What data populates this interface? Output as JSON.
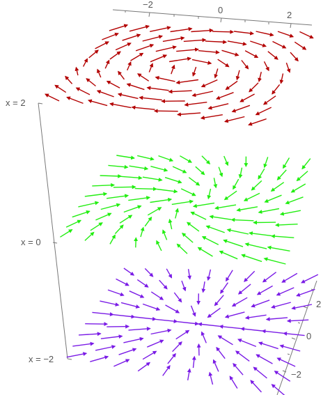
{
  "chart_data": {
    "type": "vector-field-3d",
    "title": "",
    "slices": [
      {
        "label": "x = 2",
        "x": 2,
        "color": "#b30000",
        "pattern": "spiral"
      },
      {
        "label": "x = 0",
        "x": 0,
        "color": "#22ee11",
        "pattern": "sink-spiral"
      },
      {
        "label": "x = −2",
        "x": -2,
        "color": "#7a1be6",
        "pattern": "sink"
      }
    ],
    "top_axis": {
      "ticks": [
        "−2",
        "0",
        "2"
      ],
      "values": [
        -2,
        0,
        2
      ],
      "range": [
        -3,
        3
      ]
    },
    "right_axis": {
      "ticks": [
        "2",
        "0",
        "−2"
      ],
      "values": [
        2,
        0,
        -2
      ],
      "range": [
        -3,
        3
      ]
    },
    "grid_per_slice": {
      "rows": 9,
      "cols": 10
    }
  }
}
